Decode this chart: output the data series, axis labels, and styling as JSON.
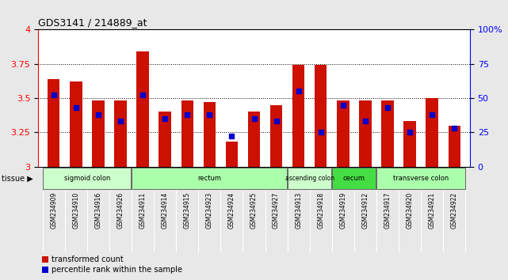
{
  "title": "GDS3141 / 214889_at",
  "samples": [
    "GSM234909",
    "GSM234910",
    "GSM234916",
    "GSM234926",
    "GSM234911",
    "GSM234914",
    "GSM234915",
    "GSM234923",
    "GSM234924",
    "GSM234925",
    "GSM234927",
    "GSM234913",
    "GSM234918",
    "GSM234919",
    "GSM234912",
    "GSM234917",
    "GSM234920",
    "GSM234921",
    "GSM234922"
  ],
  "transformed_count": [
    3.64,
    3.62,
    3.48,
    3.48,
    3.84,
    3.4,
    3.48,
    3.47,
    3.18,
    3.4,
    3.45,
    3.74,
    3.74,
    3.48,
    3.48,
    3.48,
    3.33,
    3.5,
    3.3
  ],
  "percentile_rank": [
    52,
    43,
    38,
    33,
    52,
    35,
    38,
    38,
    22,
    35,
    33,
    55,
    25,
    45,
    33,
    43,
    25,
    38,
    28
  ],
  "ylim_left": [
    3.0,
    4.0
  ],
  "ylim_right": [
    0,
    100
  ],
  "yticks_left": [
    3.0,
    3.25,
    3.5,
    3.75,
    4.0
  ],
  "yticks_right": [
    0,
    25,
    50,
    75,
    100
  ],
  "grid_lines": [
    3.25,
    3.5,
    3.75
  ],
  "tissue_groups": [
    {
      "label": "sigmoid colon",
      "start": 0,
      "end": 4,
      "color": "#ccffcc"
    },
    {
      "label": "rectum",
      "start": 4,
      "end": 11,
      "color": "#aaffaa"
    },
    {
      "label": "ascending colon",
      "start": 11,
      "end": 13,
      "color": "#ccffcc"
    },
    {
      "label": "cecum",
      "start": 13,
      "end": 15,
      "color": "#44dd44"
    },
    {
      "label": "transverse colon",
      "start": 15,
      "end": 19,
      "color": "#aaffaa"
    }
  ],
  "bar_color": "#cc1100",
  "percentile_color": "#0000cc",
  "bar_width": 0.55,
  "fig_bg": "#e8e8e8",
  "plot_bg": "#ffffff",
  "xtick_bg": "#cccccc"
}
